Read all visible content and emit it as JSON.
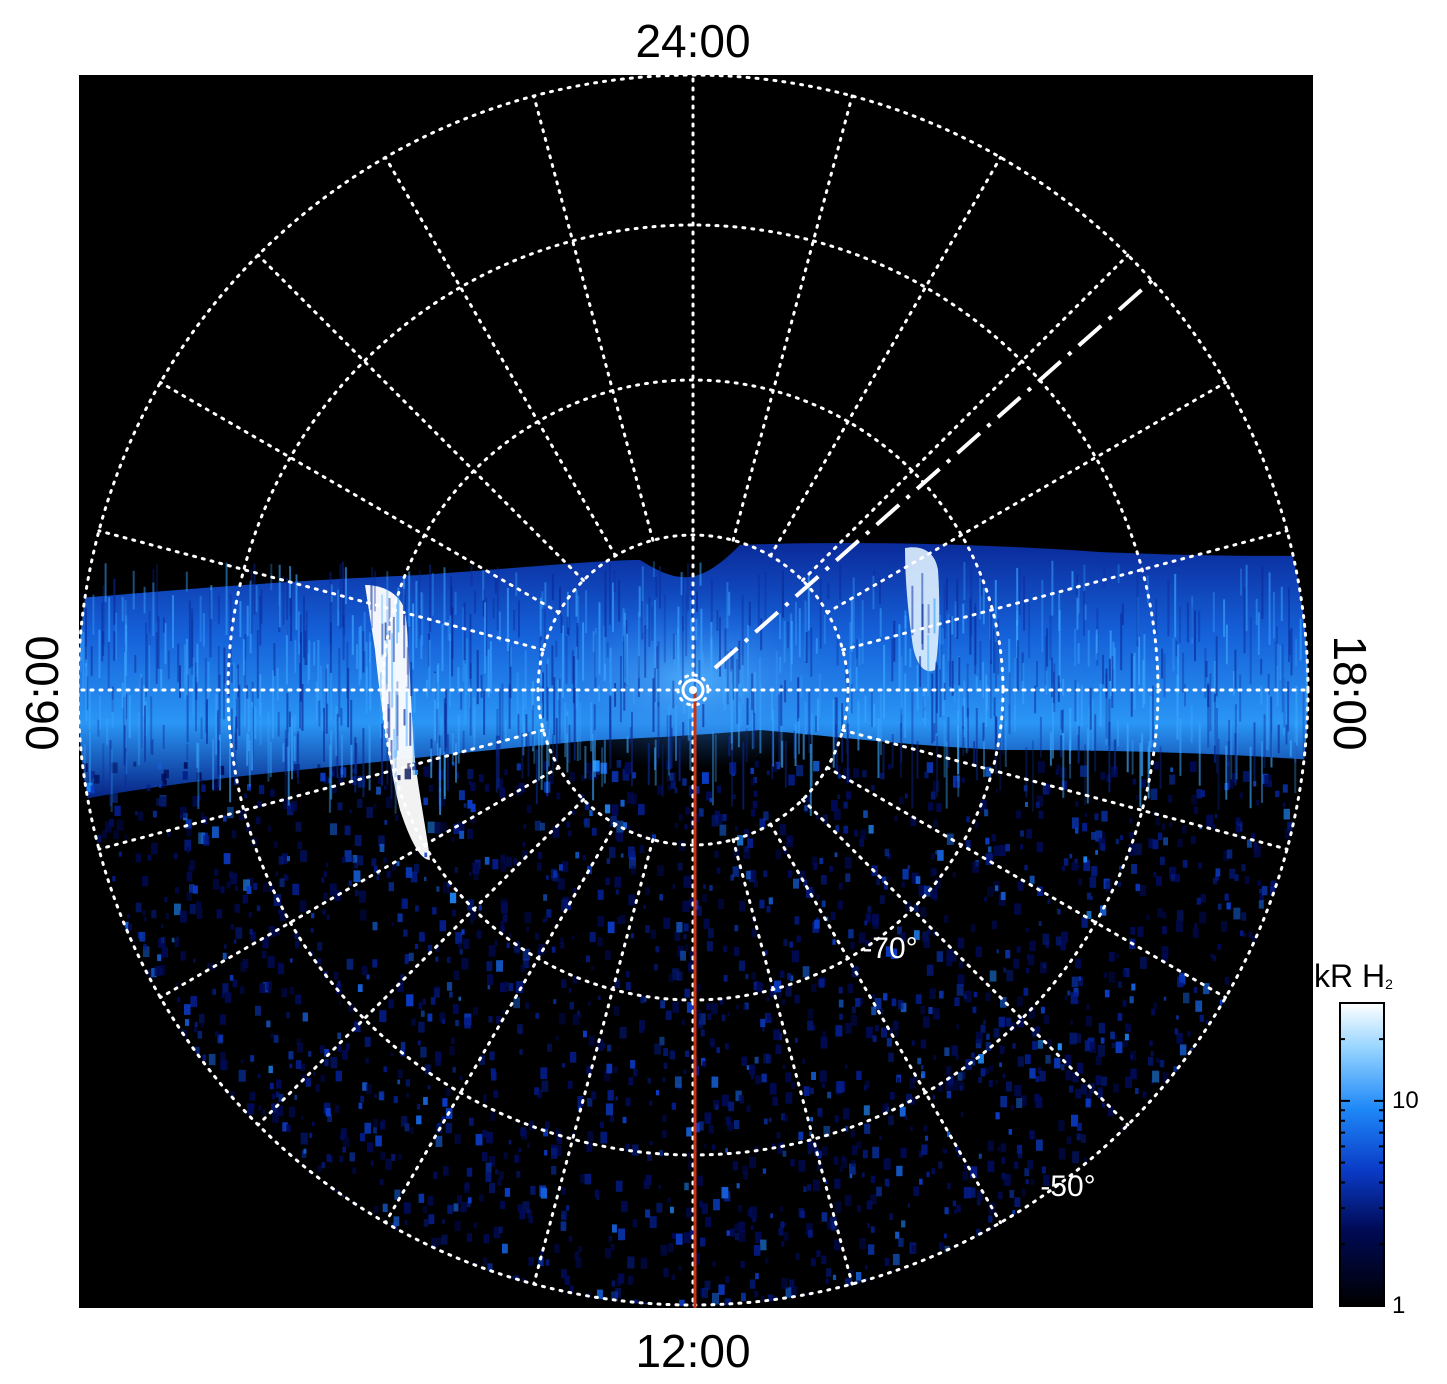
{
  "chart_data": {
    "type": "heatmap",
    "projection": "polar (south pole, local time vs latitude)",
    "local_time_labels": {
      "top": "24:00",
      "bottom": "12:00",
      "left": "06:00",
      "right": "18:00"
    },
    "latitude_labels": [
      "-70°",
      "-50°"
    ],
    "latitude_label_values": [
      -70,
      -50
    ],
    "grid": true,
    "colorbar": {
      "title": "kR H",
      "title_subscript": "2",
      "scale": "log",
      "range": [
        1,
        30
      ],
      "tick_labels": [
        "10",
        "1"
      ],
      "tick_values": [
        10,
        1
      ],
      "colors": [
        "#000000",
        "#000a55",
        "#0a3cc8",
        "#1e88f8",
        "#96d4ff",
        "#ffffff"
      ]
    },
    "overlays": {
      "meridian_line_color": "#c83214",
      "dash_line_color": "#ffffff"
    }
  }
}
